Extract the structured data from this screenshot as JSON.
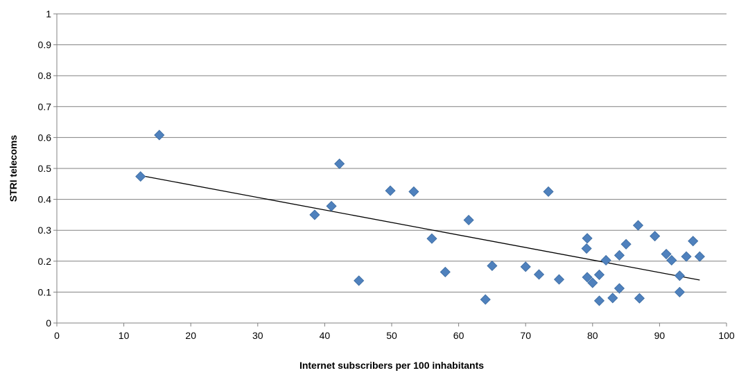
{
  "chart_data": {
    "type": "scatter",
    "title": "",
    "xlabel": "Internet subscribers per 100 inhabitants",
    "ylabel": "STRI telecoms",
    "xlim": [
      0,
      100
    ],
    "ylim": [
      0,
      1
    ],
    "x_ticks": [
      0,
      10,
      20,
      30,
      40,
      50,
      60,
      70,
      80,
      90,
      100
    ],
    "y_ticks": [
      0,
      0.1,
      0.2,
      0.3,
      0.4,
      0.5,
      0.6,
      0.7,
      0.8,
      0.9,
      1
    ],
    "x_tick_labels": [
      "0",
      "10",
      "20",
      "30",
      "40",
      "50",
      "60",
      "70",
      "80",
      "90",
      "100"
    ],
    "y_tick_labels": [
      "0",
      "0.1",
      "0.2",
      "0.3",
      "0.4",
      "0.5",
      "0.6",
      "0.7",
      "0.8",
      "0.9",
      "1"
    ],
    "grid": "horizontal",
    "legend": "none",
    "marker": "diamond",
    "marker_color": "#4F81BD",
    "trendline_color": "#000000",
    "trendline": {
      "x": [
        12.5,
        96
      ],
      "y": [
        0.477,
        0.139
      ]
    },
    "points": [
      {
        "x": 12.5,
        "y": 0.474
      },
      {
        "x": 15.3,
        "y": 0.608
      },
      {
        "x": 38.5,
        "y": 0.35
      },
      {
        "x": 41.0,
        "y": 0.378
      },
      {
        "x": 42.2,
        "y": 0.515
      },
      {
        "x": 45.1,
        "y": 0.137
      },
      {
        "x": 49.8,
        "y": 0.428
      },
      {
        "x": 53.3,
        "y": 0.425
      },
      {
        "x": 56.0,
        "y": 0.273
      },
      {
        "x": 58.0,
        "y": 0.165
      },
      {
        "x": 61.5,
        "y": 0.333
      },
      {
        "x": 64.0,
        "y": 0.076
      },
      {
        "x": 65.0,
        "y": 0.185
      },
      {
        "x": 70.0,
        "y": 0.182
      },
      {
        "x": 72.0,
        "y": 0.157
      },
      {
        "x": 73.4,
        "y": 0.425
      },
      {
        "x": 75.0,
        "y": 0.141
      },
      {
        "x": 79.1,
        "y": 0.241
      },
      {
        "x": 79.2,
        "y": 0.274
      },
      {
        "x": 79.2,
        "y": 0.148
      },
      {
        "x": 80.0,
        "y": 0.13
      },
      {
        "x": 81.0,
        "y": 0.156
      },
      {
        "x": 81.0,
        "y": 0.072
      },
      {
        "x": 82.0,
        "y": 0.203
      },
      {
        "x": 83.0,
        "y": 0.081
      },
      {
        "x": 84.0,
        "y": 0.219
      },
      {
        "x": 84.0,
        "y": 0.112
      },
      {
        "x": 85.0,
        "y": 0.255
      },
      {
        "x": 86.8,
        "y": 0.316
      },
      {
        "x": 87.0,
        "y": 0.08
      },
      {
        "x": 89.3,
        "y": 0.281
      },
      {
        "x": 91.0,
        "y": 0.223
      },
      {
        "x": 91.8,
        "y": 0.203
      },
      {
        "x": 93.0,
        "y": 0.153
      },
      {
        "x": 93.0,
        "y": 0.1
      },
      {
        "x": 94.0,
        "y": 0.215
      },
      {
        "x": 95.0,
        "y": 0.265
      },
      {
        "x": 96.0,
        "y": 0.215
      }
    ]
  }
}
